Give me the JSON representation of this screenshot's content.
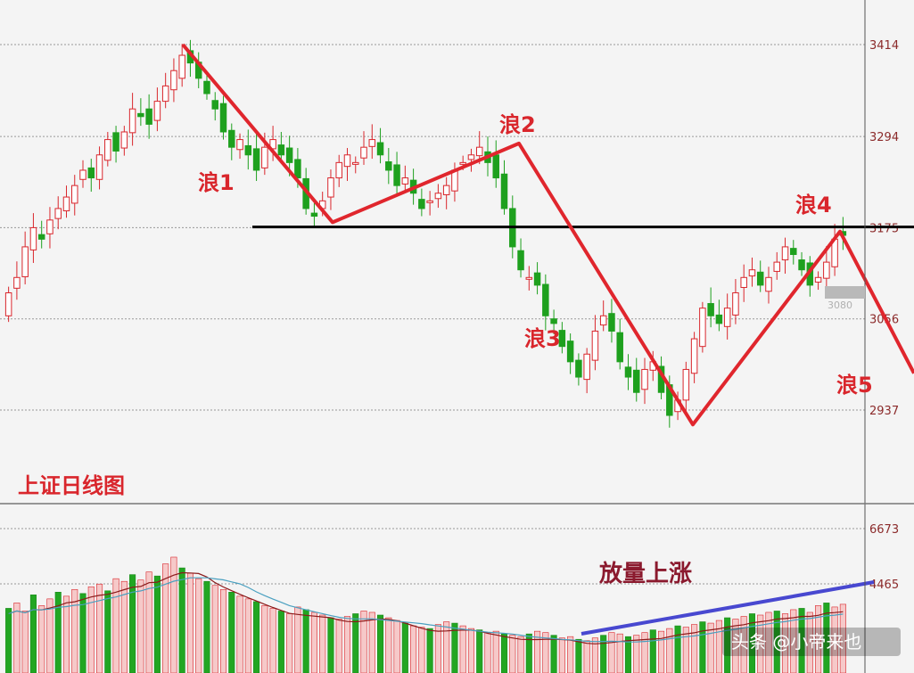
{
  "chart_data": [
    {
      "type": "candlestick",
      "title": "上证日线图",
      "y_ticks": [
        3414,
        3294,
        3175,
        3056,
        2937
      ],
      "ylim": [
        2860,
        3470
      ],
      "grid": true,
      "marker_value": "3080",
      "support_line": 3176,
      "wave_points": [
        {
          "label": "",
          "value": 3414
        },
        {
          "label": "",
          "value": 3182
        },
        {
          "label": "浪2",
          "value": 3285
        },
        {
          "label": "",
          "value": 2918
        },
        {
          "label": "浪4",
          "value": 3170
        },
        {
          "label": "",
          "value": 2985
        }
      ],
      "wave_labels": [
        "浪1",
        "浪2",
        "浪3",
        "浪4",
        "浪5"
      ],
      "candles_close": [
        3090,
        3110,
        3150,
        3175,
        3160,
        3185,
        3200,
        3215,
        3230,
        3250,
        3240,
        3270,
        3290,
        3275,
        3300,
        3330,
        3320,
        3310,
        3340,
        3360,
        3380,
        3400,
        3390,
        3370,
        3350,
        3330,
        3300,
        3280,
        3290,
        3270,
        3250,
        3280,
        3290,
        3270,
        3260,
        3240,
        3200,
        3190,
        3210,
        3240,
        3260,
        3270,
        3260,
        3280,
        3290,
        3270,
        3250,
        3230,
        3240,
        3220,
        3200,
        3210,
        3220,
        3230,
        3250,
        3260,
        3270,
        3280,
        3260,
        3240,
        3200,
        3150,
        3120,
        3110,
        3100,
        3060,
        3050,
        3020,
        3000,
        2980,
        3010,
        3040,
        3060,
        3040,
        3000,
        2980,
        2960,
        2990,
        3000,
        2960,
        2930,
        2950,
        2990,
        3030,
        3070,
        3060,
        3050,
        3070,
        3090,
        3110,
        3120,
        3100,
        3110,
        3130,
        3150,
        3140,
        3120,
        3100,
        3110,
        3130,
        3160,
        3165
      ],
      "volume": {
        "y_ticks": [
          6673,
          4465
        ],
        "annotation": "放量上涨",
        "values": [
          48,
          52,
          46,
          58,
          50,
          55,
          60,
          57,
          62,
          59,
          64,
          66,
          61,
          70,
          68,
          73,
          69,
          75,
          72,
          81,
          86,
          78,
          74,
          70,
          68,
          65,
          62,
          60,
          57,
          55,
          53,
          50,
          48,
          46,
          44,
          49,
          47,
          45,
          43,
          41,
          40,
          42,
          44,
          46,
          45,
          43,
          41,
          39,
          37,
          35,
          34,
          33,
          36,
          38,
          37,
          35,
          33,
          32,
          30,
          31,
          29,
          28,
          27,
          29,
          31,
          30,
          28,
          26,
          27,
          25,
          24,
          26,
          28,
          30,
          29,
          27,
          28,
          30,
          32,
          31,
          33,
          35,
          34,
          36,
          38,
          37,
          39,
          41,
          40,
          42,
          44,
          43,
          45,
          46,
          44,
          47,
          48,
          45,
          50,
          52,
          49,
          51
        ]
      }
    }
  ],
  "watermark": "头条 @小帝来也"
}
